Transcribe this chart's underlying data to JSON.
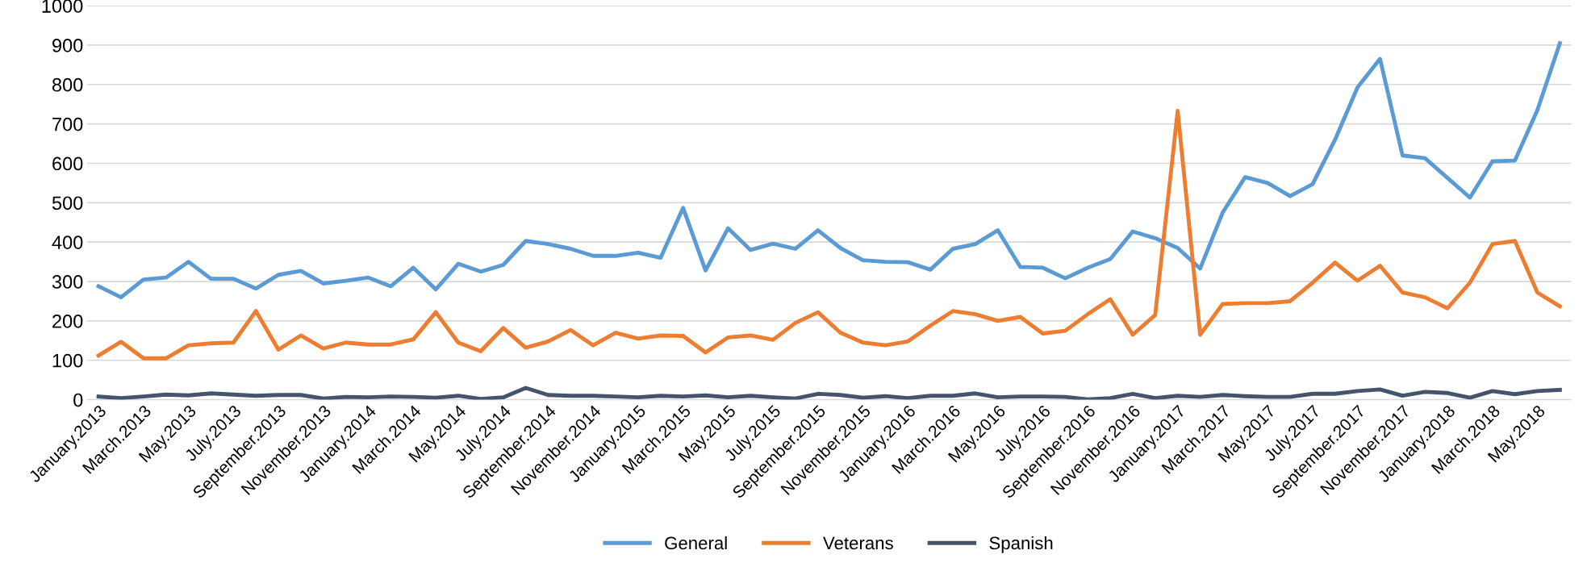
{
  "chart_data": {
    "type": "line",
    "categories": [
      "January.2013",
      null,
      "March.2013",
      null,
      "May.2013",
      null,
      "July.2013",
      null,
      "September.2013",
      null,
      "November.2013",
      null,
      "January.2014",
      null,
      "March.2014",
      null,
      "May.2014",
      null,
      "July.2014",
      null,
      "September.2014",
      null,
      "November.2014",
      null,
      "January.2015",
      null,
      "March.2015",
      null,
      "May.2015",
      null,
      "July.2015",
      null,
      "September.2015",
      null,
      "November.2015",
      null,
      "January.2016",
      null,
      "March.2016",
      null,
      "May.2016",
      null,
      "July.2016",
      null,
      "September.2016",
      null,
      "November.2016",
      null,
      "January.2017",
      null,
      "March.2017",
      null,
      "May.2017",
      null,
      "July.2017",
      null,
      "September.2017",
      null,
      "November.2017",
      null,
      "January.2018",
      null,
      "March.2018",
      null,
      "May.2018",
      null
    ],
    "series": [
      {
        "name": "General",
        "color": "#5b9bd5",
        "values": [
          288,
          260,
          305,
          310,
          350,
          307,
          307,
          282,
          317,
          327,
          295,
          302,
          310,
          288,
          335,
          280,
          345,
          325,
          342,
          403,
          395,
          383,
          365,
          365,
          373,
          360,
          487,
          328,
          435,
          380,
          396,
          383,
          430,
          385,
          354,
          350,
          349,
          330,
          383,
          395,
          430,
          337,
          335,
          308,
          335,
          357,
          427,
          410,
          385,
          333,
          475,
          565,
          550,
          517,
          547,
          660,
          793,
          865,
          620,
          613,
          563,
          513,
          605,
          607,
          735,
          905
        ]
      },
      {
        "name": "Veterans",
        "color": "#ed7d31",
        "values": [
          112,
          147,
          105,
          105,
          138,
          143,
          145,
          225,
          127,
          163,
          130,
          145,
          140,
          140,
          153,
          222,
          145,
          123,
          182,
          132,
          148,
          177,
          138,
          170,
          155,
          163,
          162,
          120,
          158,
          163,
          152,
          195,
          222,
          170,
          145,
          138,
          148,
          188,
          225,
          217,
          200,
          210,
          168,
          175,
          217,
          255,
          165,
          215,
          733,
          165,
          243,
          245,
          245,
          250,
          297,
          348,
          302,
          340,
          272,
          260,
          232,
          297,
          395,
          403,
          272,
          237
        ]
      },
      {
        "name": "Spanish",
        "color": "#44546a",
        "values": [
          8,
          4,
          8,
          13,
          11,
          16,
          13,
          10,
          12,
          12,
          3,
          7,
          6,
          8,
          7,
          5,
          10,
          2,
          6,
          30,
          12,
          10,
          10,
          8,
          6,
          10,
          8,
          11,
          6,
          10,
          6,
          3,
          15,
          12,
          5,
          9,
          4,
          10,
          10,
          16,
          6,
          8,
          8,
          7,
          1,
          4,
          15,
          4,
          10,
          7,
          12,
          9,
          7,
          7,
          15,
          15,
          22,
          26,
          10,
          20,
          17,
          5,
          22,
          14,
          22,
          25
        ]
      }
    ],
    "ylim": [
      0,
      1000
    ],
    "yticks": [
      0,
      100,
      200,
      300,
      400,
      500,
      600,
      700,
      800,
      900,
      1000
    ],
    "grid": "y",
    "legend": "bottom",
    "marker": "none",
    "line_style": "solid"
  }
}
